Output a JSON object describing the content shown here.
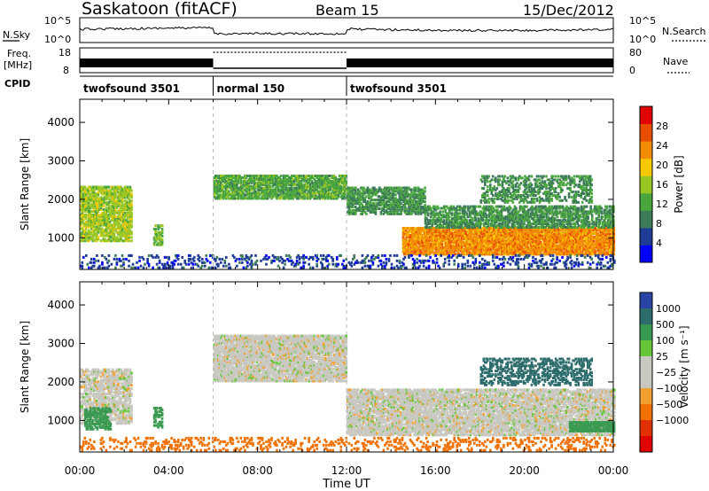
{
  "header": {
    "station": "Saskatoon (fitACF)",
    "beam": "Beam 15",
    "date": "15/Dec/2012"
  },
  "noise_panel": {
    "left_label": "N.Sky",
    "left_ticks": [
      "10^5",
      "10^0"
    ],
    "right_label": "N.Search",
    "right_ticks": [
      "10^5",
      "10^0"
    ]
  },
  "freq_panel": {
    "left_label_line1": "Freq.",
    "left_label_line2": "[MHz]",
    "left_ticks": [
      "18",
      "8"
    ],
    "right_label": "Nave",
    "right_ticks": [
      "80",
      "0"
    ]
  },
  "cpid": {
    "label": "CPID",
    "segments": [
      {
        "name": "twofsound 3501",
        "start": 0,
        "end": 6
      },
      {
        "name": "normal 150",
        "start": 6,
        "end": 12
      },
      {
        "name": "twofsound 3501",
        "start": 12,
        "end": 24
      }
    ]
  },
  "chart_data": [
    {
      "type": "heatmap",
      "panel": "power",
      "ylabel": "Slant Range [km]",
      "xlim": [
        0,
        24
      ],
      "ylim": [
        180,
        4600
      ],
      "yticks": [
        1000,
        2000,
        3000,
        4000
      ],
      "colorbar": {
        "label": "Power [dB]",
        "ticks": [
          "28",
          "24",
          "20",
          "16",
          "12",
          "8",
          "4"
        ],
        "levels": [
          0,
          4,
          8,
          12,
          16,
          20,
          24,
          28,
          32
        ],
        "colors": [
          "#0000ff",
          "#1e3c96",
          "#3d7a5a",
          "#49a63d",
          "#9ac624",
          "#f5c800",
          "#f28c00",
          "#e84d00",
          "#e00000"
        ]
      },
      "scatter_regions": [
        {
          "t0": 0.0,
          "t1": 2.3,
          "lo": 900,
          "hi": 2300,
          "v": 18,
          "d": 0.7
        },
        {
          "t0": 3.3,
          "t1": 3.7,
          "lo": 800,
          "hi": 1300,
          "v": 16,
          "d": 0.5
        },
        {
          "t0": 6.0,
          "t1": 12.0,
          "lo": 2000,
          "hi": 2600,
          "v": 14,
          "d": 0.75
        },
        {
          "t0": 12.0,
          "t1": 15.5,
          "lo": 1600,
          "hi": 2300,
          "v": 12,
          "d": 0.6
        },
        {
          "t0": 14.5,
          "t1": 24.0,
          "lo": 550,
          "hi": 1250,
          "v": 26,
          "d": 0.85
        },
        {
          "t0": 15.5,
          "t1": 24.0,
          "lo": 1250,
          "hi": 1800,
          "v": 12,
          "d": 0.6
        },
        {
          "t0": 18.0,
          "t1": 23.0,
          "lo": 1900,
          "hi": 2600,
          "v": 12,
          "d": 0.4
        },
        {
          "t0": 0.0,
          "t1": 24.0,
          "lo": 200,
          "hi": 550,
          "v": 6,
          "d": 0.2
        }
      ]
    },
    {
      "type": "heatmap",
      "panel": "velocity",
      "ylabel": "Slant Range [km]",
      "xlabel": "Time UT",
      "xlim": [
        0,
        24
      ],
      "ylim": [
        180,
        4600
      ],
      "yticks": [
        1000,
        2000,
        3000,
        4000
      ],
      "xticks": [
        "00:00",
        "04:00",
        "08:00",
        "12:00",
        "16:00",
        "20:00",
        "00:00"
      ],
      "colorbar": {
        "label": "Velocity [m s⁻¹]",
        "ticks": [
          "1000",
          "500",
          "100",
          "25",
          "−25",
          "−100",
          "−500",
          "−1000"
        ],
        "colors": [
          "#2a44a6",
          "#2e6d6d",
          "#3a9a52",
          "#66c63a",
          "#c8c8c0",
          "#c8c8c0",
          "#f0a030",
          "#f07000",
          "#e03000",
          "#e00000"
        ]
      },
      "scatter_regions": [
        {
          "t0": 0.0,
          "t1": 2.3,
          "lo": 900,
          "hi": 2300,
          "v": 0,
          "d": 0.6
        },
        {
          "t0": 0.2,
          "t1": 1.4,
          "lo": 750,
          "hi": 1300,
          "v": 120,
          "d": 0.6
        },
        {
          "t0": 3.3,
          "t1": 3.7,
          "lo": 800,
          "hi": 1300,
          "v": 250,
          "d": 0.5
        },
        {
          "t0": 6.0,
          "t1": 12.0,
          "lo": 2000,
          "hi": 3200,
          "v": 0,
          "d": 0.8
        },
        {
          "t0": 12.0,
          "t1": 24.0,
          "lo": 600,
          "hi": 1800,
          "v": 0,
          "d": 0.75
        },
        {
          "t0": 18.0,
          "t1": 23.0,
          "lo": 1900,
          "hi": 2600,
          "v": 400,
          "d": 0.4
        },
        {
          "t0": 22.0,
          "t1": 24.0,
          "lo": 700,
          "hi": 950,
          "v": 120,
          "d": 0.85
        },
        {
          "t0": 0.0,
          "t1": 24.0,
          "lo": 200,
          "hi": 550,
          "v": -120,
          "d": 0.2
        }
      ]
    }
  ]
}
